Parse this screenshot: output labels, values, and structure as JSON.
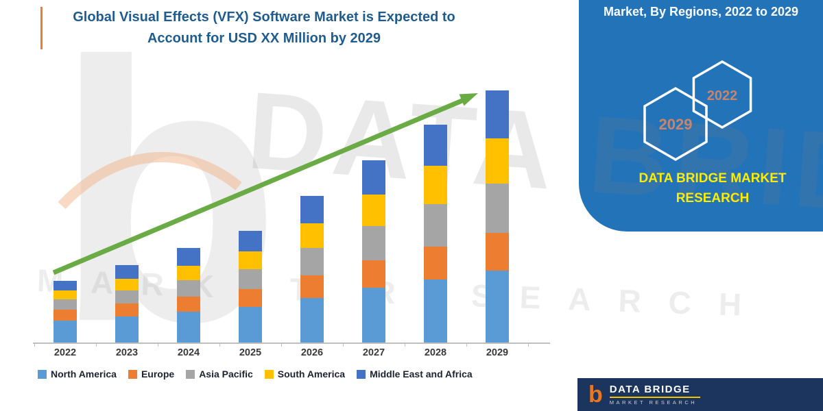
{
  "header": {
    "title_line1": "Global Visual Effects (VFX) Software Market is Expected to",
    "title_line2": "Account for USD XX Million by 2029"
  },
  "side_panel": {
    "header": "Market, By Regions, 2022 to 2029",
    "hexagon_back_year": "2029",
    "hexagon_front_year": "2022",
    "tagline_line1": "DATA BRIDGE MARKET",
    "tagline_line2": "RESEARCH",
    "panel_color": "#2373B9",
    "tagline_color": "#FFEC00",
    "hexagon_text_color": "#C9846B"
  },
  "footer_logo": {
    "brand": "DATA BRIDGE",
    "brand_sub": "MARKET RESEARCH",
    "bg_color": "#1C355E"
  },
  "watermark": {
    "logo_letter": "b",
    "text1": "DATA BRIDGE",
    "text2": "MARKET RESEARCH"
  },
  "chart_data": {
    "type": "bar",
    "stacked": true,
    "title": "Global Visual Effects (VFX) Software Market is Expected to Account for USD XX Million by 2029",
    "xlabel": "",
    "ylabel": "",
    "ylim": [
      0,
      410
    ],
    "grid": false,
    "legend_position": "bottom",
    "categories": [
      "2022",
      "2023",
      "2024",
      "2025",
      "2026",
      "2027",
      "2028",
      "2029"
    ],
    "series": [
      {
        "name": "North America",
        "color": "#5B9BD5",
        "values": [
          32,
          38,
          45,
          52,
          65,
          80,
          92,
          105
        ]
      },
      {
        "name": "Europe",
        "color": "#ED7D31",
        "values": [
          16,
          19,
          22,
          26,
          33,
          40,
          48,
          55
        ]
      },
      {
        "name": "Asia Pacific",
        "color": "#A5A5A5",
        "values": [
          15,
          19,
          24,
          29,
          40,
          50,
          62,
          72
        ]
      },
      {
        "name": "South America",
        "color": "#FFC000",
        "values": [
          13,
          17,
          21,
          26,
          36,
          46,
          56,
          66
        ]
      },
      {
        "name": "Middle East and Africa",
        "color": "#4472C4",
        "values": [
          14,
          20,
          26,
          30,
          40,
          50,
          60,
          70
        ]
      }
    ],
    "note": "Axis values are not labeled in the source (USD XX Million); series values estimated from relative bar heights.",
    "annotations": [
      "green upward trend arrow spanning 2022 to 2029"
    ],
    "trend_arrow_color": "#6BAB45"
  }
}
